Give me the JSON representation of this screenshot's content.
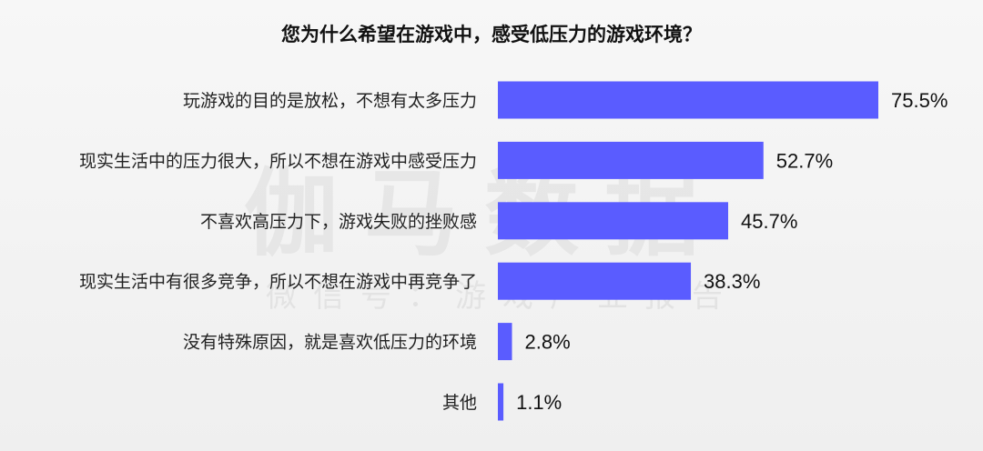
{
  "chart_data": {
    "type": "bar",
    "orientation": "horizontal",
    "title": "您为什么希望在游戏中，感受低压力的游戏环境？",
    "categories": [
      "玩游戏的目的是放松，不想有太多压力",
      "现实生活中的压力很大，所以不想在游戏中感受压力",
      "不喜欢高压力下，游戏失败的挫败感",
      "现实生活中有很多竞争，所以不想在游戏中再竞争了",
      "没有特殊原因，就是喜欢低压力的环境",
      "其他"
    ],
    "values": [
      75.5,
      52.7,
      45.7,
      38.3,
      2.8,
      1.1
    ],
    "labels": [
      "75.5%",
      "52.7%",
      "45.7%",
      "38.3%",
      "2.8%",
      "1.1%"
    ],
    "unit": "%",
    "grid": false,
    "bar_color": "#5a5cff"
  },
  "watermark": {
    "main": "伽马数据",
    "sub": "微信号：游戏产业报告"
  }
}
